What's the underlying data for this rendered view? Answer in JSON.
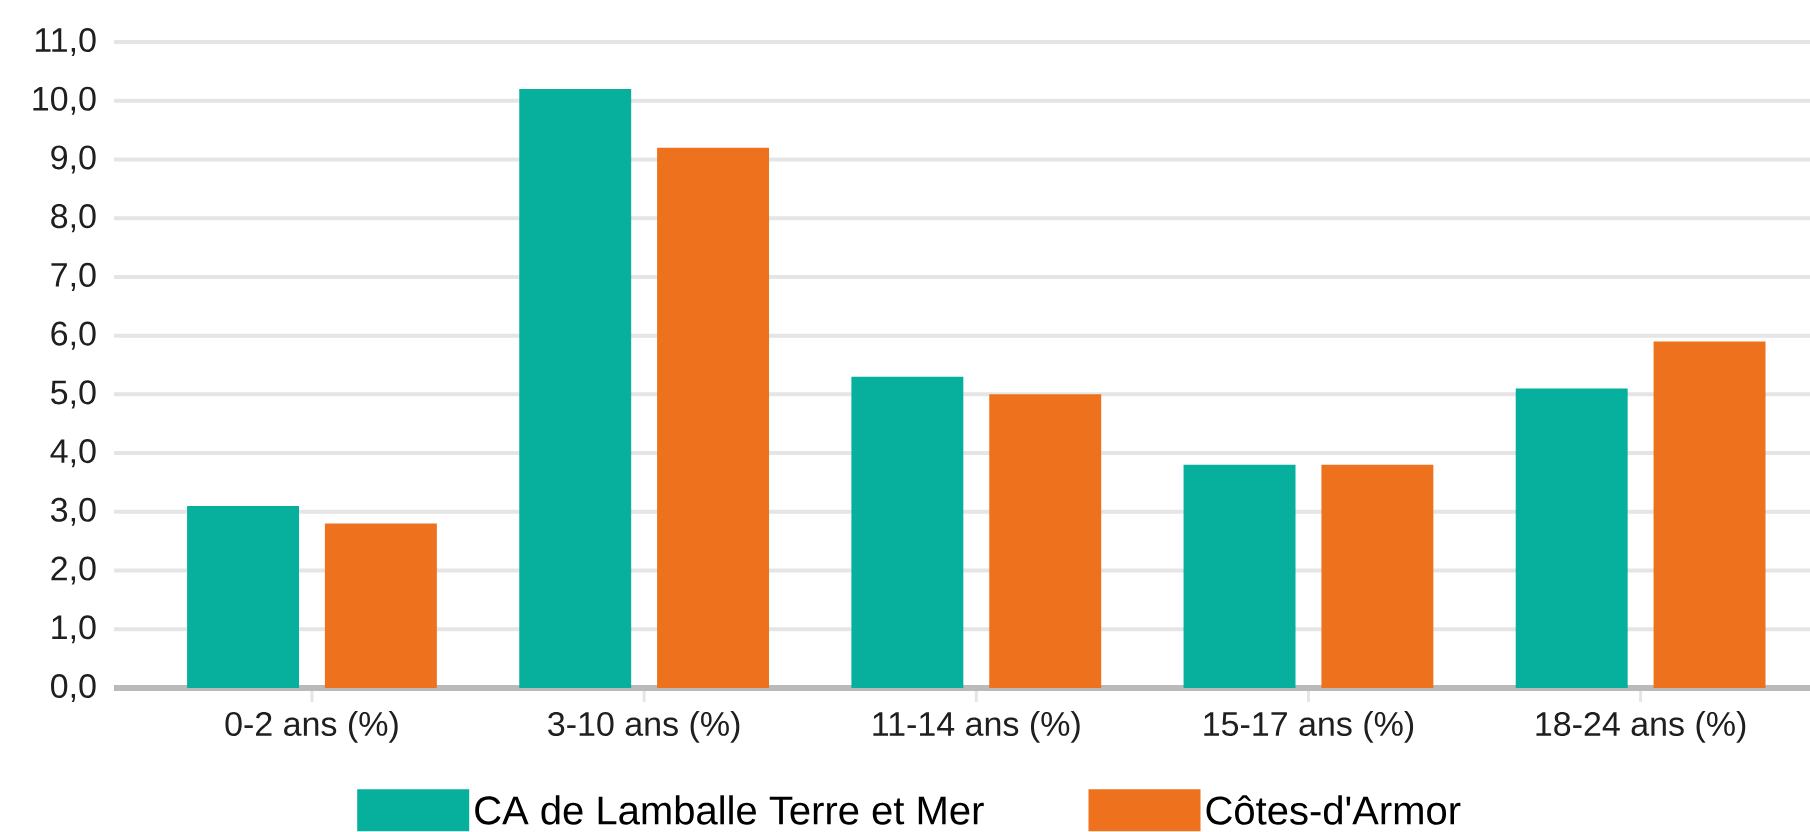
{
  "chart_data": {
    "type": "bar",
    "categories": [
      "0-2 ans (%)",
      "3-10 ans (%)",
      "11-14 ans (%)",
      "15-17 ans (%)",
      "18-24 ans (%)"
    ],
    "series": [
      {
        "name": "CA de Lamballe Terre et Mer",
        "color": "#06b09c",
        "values": [
          3.1,
          10.2,
          5.3,
          3.8,
          5.1
        ]
      },
      {
        "name": "Côtes-d'Armor",
        "color": "#ee711e",
        "values": [
          2.8,
          9.2,
          5.0,
          3.8,
          5.9
        ]
      }
    ],
    "ylim": [
      0,
      11
    ],
    "yticks": [
      {
        "value": 0,
        "label": "0,0"
      },
      {
        "value": 1,
        "label": "1,0"
      },
      {
        "value": 2,
        "label": "2,0"
      },
      {
        "value": 3,
        "label": "3,0"
      },
      {
        "value": 4,
        "label": "4,0"
      },
      {
        "value": 5,
        "label": "5,0"
      },
      {
        "value": 6,
        "label": "6,0"
      },
      {
        "value": 7,
        "label": "7,0"
      },
      {
        "value": 8,
        "label": "8,0"
      },
      {
        "value": 9,
        "label": "9,0"
      },
      {
        "value": 10,
        "label": "10,0"
      },
      {
        "value": 11,
        "label": "11,0"
      }
    ],
    "grid": "y",
    "legend": "bottom"
  }
}
